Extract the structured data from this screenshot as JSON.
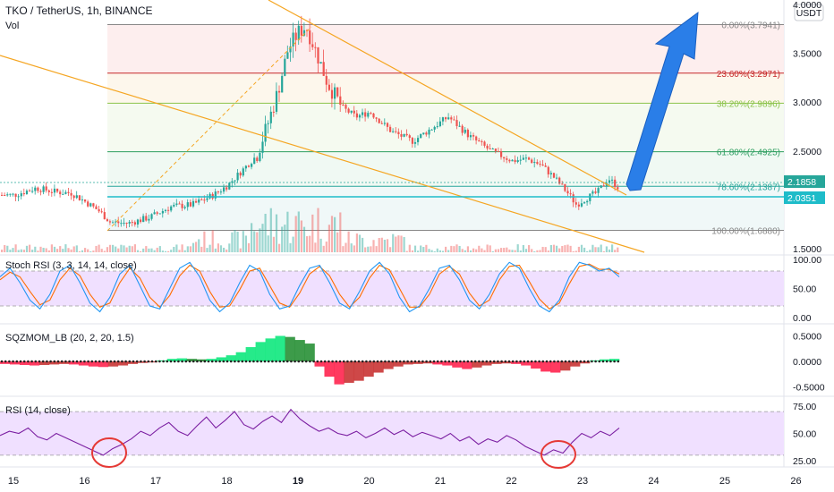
{
  "header": {
    "symbol_line": "TKO / TetherUS, 1h, BINANCE",
    "volume_label": "Vol",
    "currency": "USDT"
  },
  "colors": {
    "up": "#26a69a",
    "down": "#ef5350",
    "trendline": "#f5a623",
    "arrow": "#2a7ee8",
    "price_line": "#26a69a",
    "support_line": "#1ebcc9",
    "stoch_k": "#2196f3",
    "stoch_d": "#ff6d00",
    "rsi": "#7b1fa2",
    "band_fill": "#f0e0ff",
    "circle": "#e53935"
  },
  "panes": {
    "stoch_label": "Stoch RSI (3, 3, 14, 14, close)",
    "sqz_label": "SQZMOM_LB (20, 2, 20, 1.5)",
    "rsi_label": "RSI (14, close)"
  },
  "chart_data": {
    "type": "candlestick",
    "x_ticks": [
      "15",
      "16",
      "17",
      "18",
      "19",
      "20",
      "21",
      "22",
      "23",
      "24",
      "25",
      "26"
    ],
    "price_axis_ticks": [
      "4.0000",
      "3.5000",
      "3.0000",
      "2.5000",
      "2.0000",
      "1.5000"
    ],
    "price_ylim": [
      1.5,
      4.0
    ],
    "last_price": "2.1858",
    "support_price": "2.0351",
    "fib_levels": [
      {
        "label": "0.00%(3.7941)",
        "value": 3.7941,
        "color": "#888888"
      },
      {
        "label": "23.60%(3.2971)",
        "value": 3.2971,
        "color": "#c62828"
      },
      {
        "label": "38.20%(2.9896)",
        "value": 2.9896,
        "color": "#8bc34a"
      },
      {
        "label": "61.80%(2.4925)",
        "value": 2.4925,
        "color": "#2e9e60"
      },
      {
        "label": "78.60%(2.1387)",
        "value": 2.1387,
        "color": "#26a69a"
      },
      {
        "label": "100.00%(1.6880)",
        "value": 1.688,
        "color": "#888888"
      }
    ],
    "price_series": [
      {
        "day": 15.0,
        "price": 2.05
      },
      {
        "day": 15.3,
        "price": 2.12
      },
      {
        "day": 15.6,
        "price": 2.08
      },
      {
        "day": 15.8,
        "price": 2.07
      },
      {
        "day": 16.0,
        "price": 1.98
      },
      {
        "day": 16.2,
        "price": 1.88
      },
      {
        "day": 16.35,
        "price": 1.77
      },
      {
        "day": 16.6,
        "price": 1.76
      },
      {
        "day": 16.9,
        "price": 1.82
      },
      {
        "day": 17.2,
        "price": 1.93
      },
      {
        "day": 17.5,
        "price": 1.95
      },
      {
        "day": 17.8,
        "price": 2.05
      },
      {
        "day": 18.0,
        "price": 2.15
      },
      {
        "day": 18.2,
        "price": 2.3
      },
      {
        "day": 18.4,
        "price": 2.45
      },
      {
        "day": 18.55,
        "price": 2.75
      },
      {
        "day": 18.7,
        "price": 3.1
      },
      {
        "day": 18.85,
        "price": 3.55
      },
      {
        "day": 19.0,
        "price": 3.72
      },
      {
        "day": 19.1,
        "price": 3.78
      },
      {
        "day": 19.25,
        "price": 3.5
      },
      {
        "day": 19.4,
        "price": 3.2
      },
      {
        "day": 19.6,
        "price": 2.95
      },
      {
        "day": 19.8,
        "price": 2.85
      },
      {
        "day": 20.0,
        "price": 2.9
      },
      {
        "day": 20.3,
        "price": 2.7
      },
      {
        "day": 20.6,
        "price": 2.6
      },
      {
        "day": 20.9,
        "price": 2.75
      },
      {
        "day": 21.1,
        "price": 2.85
      },
      {
        "day": 21.4,
        "price": 2.65
      },
      {
        "day": 21.7,
        "price": 2.5
      },
      {
        "day": 22.0,
        "price": 2.4
      },
      {
        "day": 22.2,
        "price": 2.42
      },
      {
        "day": 22.4,
        "price": 2.36
      },
      {
        "day": 22.6,
        "price": 2.22
      },
      {
        "day": 22.8,
        "price": 2.05
      },
      {
        "day": 22.9,
        "price": 1.95
      },
      {
        "day": 23.0,
        "price": 2.0
      },
      {
        "day": 23.2,
        "price": 2.08
      },
      {
        "day": 23.35,
        "price": 2.22
      },
      {
        "day": 23.5,
        "price": 2.12
      },
      {
        "day": 23.7,
        "price": 2.1
      },
      {
        "day": 23.78,
        "price": 2.1858
      }
    ],
    "stoch_axis_ticks": [
      "100.00",
      "50.00",
      "0.00"
    ],
    "stoch_bands": [
      80,
      20
    ],
    "stoch_k": [
      70,
      85,
      60,
      30,
      15,
      40,
      80,
      90,
      60,
      25,
      10,
      35,
      75,
      90,
      55,
      20,
      15,
      50,
      85,
      95,
      70,
      30,
      10,
      25,
      60,
      90,
      80,
      40,
      15,
      20,
      55,
      85,
      90,
      60,
      25,
      15,
      45,
      80,
      95,
      75,
      35,
      10,
      20,
      50,
      85,
      90,
      65,
      30,
      15,
      40,
      75,
      95,
      85,
      50,
      20,
      10,
      30,
      70,
      95,
      90,
      80,
      85,
      70
    ],
    "stoch_d": [
      65,
      78,
      70,
      45,
      22,
      30,
      65,
      85,
      72,
      40,
      18,
      25,
      60,
      85,
      68,
      35,
      18,
      38,
      72,
      90,
      80,
      45,
      18,
      20,
      48,
      80,
      85,
      55,
      25,
      18,
      42,
      75,
      88,
      72,
      40,
      18,
      35,
      68,
      90,
      82,
      50,
      18,
      18,
      40,
      75,
      88,
      75,
      42,
      20,
      30,
      65,
      88,
      90,
      62,
      32,
      15,
      25,
      58,
      88,
      92,
      83,
      83,
      75
    ],
    "sqz_axis_ticks": [
      "0.5000",
      "0.0000",
      "-0.5000"
    ],
    "sqz_hist": [
      -0.05,
      -0.06,
      -0.07,
      -0.08,
      -0.07,
      -0.06,
      -0.05,
      -0.06,
      -0.08,
      -0.1,
      -0.11,
      -0.1,
      -0.08,
      -0.05,
      -0.03,
      -0.02,
      0.02,
      0.05,
      0.06,
      0.05,
      0.04,
      0.05,
      0.08,
      0.12,
      0.18,
      0.28,
      0.38,
      0.45,
      0.5,
      0.48,
      0.42,
      0.35,
      -0.1,
      -0.3,
      -0.45,
      -0.42,
      -0.38,
      -0.3,
      -0.22,
      -0.15,
      -0.1,
      -0.06,
      -0.05,
      -0.04,
      -0.06,
      -0.08,
      -0.12,
      -0.15,
      -0.12,
      -0.08,
      -0.05,
      -0.04,
      -0.05,
      -0.08,
      -0.14,
      -0.2,
      -0.22,
      -0.18,
      -0.1,
      -0.04,
      0.02,
      0.04,
      0.05
    ],
    "rsi_axis_ticks": [
      "75.00",
      "50.00",
      "25.00"
    ],
    "rsi_bands": [
      70,
      30
    ],
    "rsi_values": [
      48,
      52,
      50,
      55,
      47,
      44,
      50,
      46,
      42,
      38,
      34,
      30,
      36,
      40,
      45,
      52,
      48,
      55,
      60,
      52,
      48,
      57,
      65,
      55,
      62,
      70,
      58,
      54,
      61,
      66,
      60,
      72,
      63,
      57,
      52,
      55,
      50,
      48,
      52,
      46,
      50,
      55,
      49,
      53,
      47,
      51,
      48,
      45,
      50,
      43,
      47,
      40,
      45,
      42,
      48,
      44,
      38,
      34,
      30,
      35,
      32,
      42,
      50,
      46,
      52,
      48,
      55
    ]
  }
}
